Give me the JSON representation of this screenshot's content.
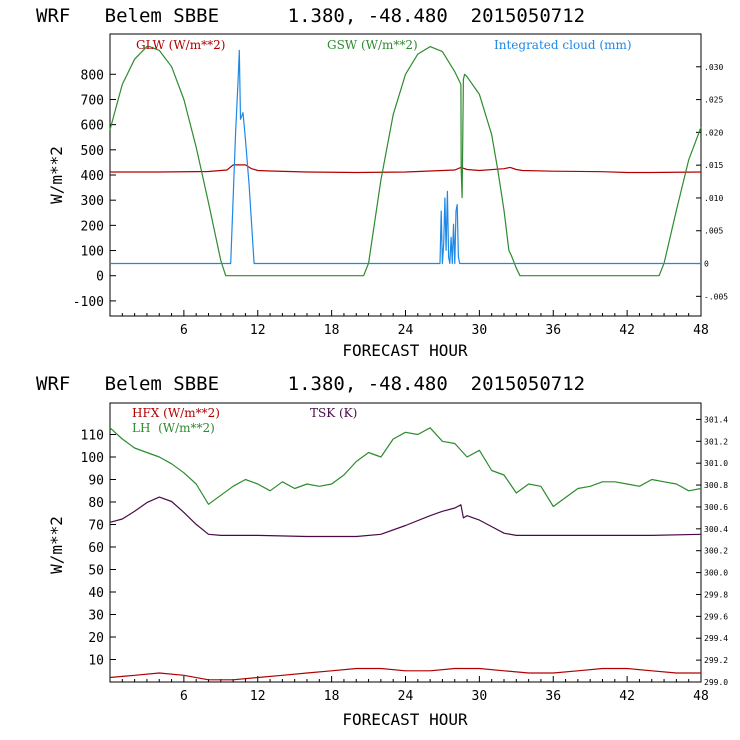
{
  "chart_data": [
    {
      "type": "line",
      "title": "WRF   Belem SBBE      1.380, -48.480  2015050712",
      "xlabel": "FORECAST HOUR",
      "ylabel": "W/m**2",
      "xlim": [
        0,
        48
      ],
      "ylim": [
        -160,
        960
      ],
      "xticks": [
        "6",
        "12",
        "18",
        "24",
        "30",
        "36",
        "42",
        "48"
      ],
      "yticks": [
        "-100",
        "0",
        "100",
        "200",
        "300",
        "400",
        "500",
        "600",
        "700",
        "800"
      ],
      "ylim_right": [
        -0.008,
        0.035
      ],
      "yticks_right": [
        "-.005",
        "0",
        ".005",
        ".010",
        ".015",
        ".020",
        ".025",
        ".030"
      ],
      "legend_items": [
        "GLW (W/m**2)",
        "GSW (W/m**2)",
        "Integrated cloud (mm)"
      ],
      "series": [
        {
          "name": "GLW (W/m**2)",
          "color": "#b00000",
          "axis": "left",
          "x": [
            0,
            4,
            8,
            9.5,
            10,
            11,
            11.5,
            12,
            13,
            16,
            20,
            24,
            28,
            28.5,
            29,
            30,
            32,
            32.5,
            33,
            33.5,
            36,
            40,
            42,
            44,
            48
          ],
          "y": [
            412,
            412,
            414,
            420,
            440,
            440,
            425,
            418,
            416,
            412,
            410,
            412,
            420,
            430,
            422,
            418,
            425,
            430,
            422,
            418,
            415,
            413,
            410,
            410,
            412
          ]
        },
        {
          "name": "GSW (W/m**2)",
          "color": "#2e8b2e",
          "axis": "left",
          "x": [
            0,
            1,
            2,
            3,
            3.2,
            4,
            5,
            6,
            7,
            8,
            9,
            9.4,
            9.6,
            20.6,
            21,
            22,
            23,
            24,
            25,
            26,
            27,
            28,
            28.5,
            28.52,
            28.6,
            28.7,
            28.8,
            29,
            30,
            31,
            31.5,
            32,
            32.4,
            32.6,
            33,
            33.3,
            44.6,
            45,
            46,
            47,
            48
          ],
          "y": [
            580,
            760,
            860,
            910,
            910,
            895,
            830,
            700,
            510,
            290,
            60,
            0,
            0,
            0,
            50,
            380,
            640,
            800,
            880,
            910,
            890,
            810,
            760,
            420,
            310,
            780,
            800,
            790,
            720,
            560,
            420,
            260,
            100,
            80,
            30,
            0,
            0,
            50,
            260,
            460,
            590
          ]
        },
        {
          "name": "Integrated cloud (mm)",
          "color": "#1e88e5",
          "axis": "right",
          "x": [
            0,
            9.8,
            10.2,
            10.4,
            10.5,
            10.6,
            10.8,
            11,
            11.3,
            11.5,
            11.7,
            26.8,
            26.9,
            27,
            27.1,
            27.2,
            27.3,
            27.4,
            27.5,
            27.6,
            27.7,
            27.8,
            27.9,
            28,
            28.1,
            28.2,
            28.3,
            28.4,
            48
          ],
          "y": [
            0,
            0,
            0.02,
            0.028,
            0.0325,
            0.022,
            0.023,
            0.019,
            0.012,
            0.006,
            0,
            0,
            0.008,
            0,
            0.003,
            0.01,
            0.002,
            0.011,
            0.001,
            0,
            0.004,
            0,
            0.006,
            0,
            0.008,
            0.009,
            0.001,
            0,
            0
          ]
        }
      ]
    },
    {
      "type": "line",
      "title": "WRF   Belem SBBE      1.380, -48.480  2015050712",
      "xlabel": "FORECAST HOUR",
      "ylabel": "W/m**2",
      "xlim": [
        0,
        48
      ],
      "ylim": [
        0,
        124
      ],
      "xticks": [
        "6",
        "12",
        "18",
        "24",
        "30",
        "36",
        "42",
        "48"
      ],
      "yticks": [
        "10",
        "20",
        "30",
        "40",
        "50",
        "60",
        "70",
        "80",
        "90",
        "100",
        "110"
      ],
      "ylim_right": [
        299.0,
        301.55
      ],
      "yticks_right": [
        "299.0",
        "299.2",
        "299.4",
        "299.6",
        "299.8",
        "300.0",
        "300.2",
        "300.4",
        "300.6",
        "300.8",
        "301.0",
        "301.2",
        "301.4"
      ],
      "legend_items": [
        "HFX (W/m**2)",
        "LH  (W/m**2)",
        "TSK (K)"
      ],
      "series": [
        {
          "name": "HFX (W/m**2)",
          "color": "#b00000",
          "axis": "left",
          "x": [
            0,
            2,
            4,
            6,
            8,
            10,
            12,
            14,
            16,
            18,
            20,
            22,
            24,
            26,
            28,
            30,
            32,
            34,
            36,
            38,
            40,
            42,
            44,
            46,
            48
          ],
          "y": [
            2,
            3,
            4,
            3,
            1,
            1,
            2,
            3,
            4,
            5,
            6,
            6,
            5,
            5,
            6,
            6,
            5,
            4,
            4,
            5,
            6,
            6,
            5,
            4,
            4
          ]
        },
        {
          "name": "LH  (W/m**2)",
          "color": "#2e8b2e",
          "axis": "left",
          "x": [
            0,
            1,
            2,
            3,
            4,
            5,
            6,
            7,
            8,
            9,
            10,
            11,
            12,
            13,
            14,
            15,
            16,
            17,
            18,
            19,
            20,
            21,
            22,
            23,
            24,
            25,
            26,
            27,
            28,
            29,
            30,
            31,
            32,
            33,
            34,
            35,
            36,
            37,
            38,
            39,
            40,
            41,
            42,
            43,
            44,
            45,
            46,
            47,
            48
          ],
          "y": [
            113,
            108,
            104,
            102,
            100,
            97,
            93,
            88,
            79,
            83,
            87,
            90,
            88,
            85,
            89,
            86,
            88,
            87,
            88,
            92,
            98,
            102,
            100,
            108,
            111,
            110,
            113,
            107,
            106,
            100,
            103,
            94,
            92,
            84,
            88,
            87,
            78,
            82,
            86,
            87,
            89,
            89,
            88,
            87,
            90,
            89,
            88,
            85,
            86
          ]
        },
        {
          "name": "TSK (K)",
          "color": "#4a0a4a",
          "axis": "right",
          "x": [
            0,
            1,
            2,
            3,
            4,
            5,
            6,
            7,
            8,
            9,
            12,
            16,
            20,
            22,
            24,
            26,
            27,
            28,
            28.5,
            28.7,
            29,
            30,
            31,
            32,
            33,
            36,
            40,
            44,
            48
          ],
          "y": [
            300.46,
            300.49,
            300.56,
            300.64,
            300.69,
            300.65,
            300.55,
            300.44,
            300.35,
            300.34,
            300.34,
            300.33,
            300.33,
            300.35,
            300.43,
            300.52,
            300.56,
            300.59,
            300.62,
            300.5,
            300.52,
            300.48,
            300.42,
            300.36,
            300.34,
            300.34,
            300.34,
            300.34,
            300.35
          ]
        }
      ]
    }
  ]
}
